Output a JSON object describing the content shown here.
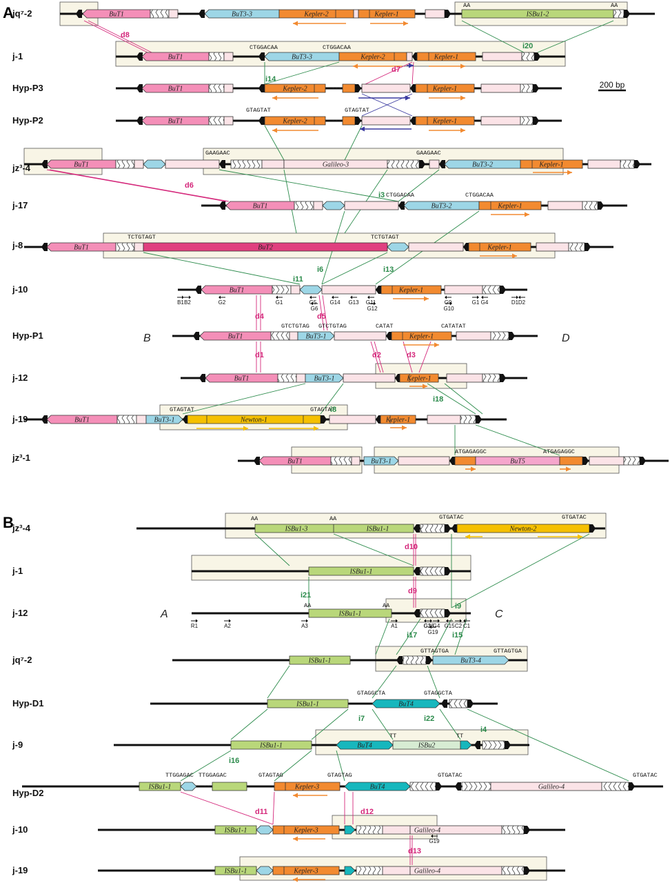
{
  "panels": [
    {
      "label": "A"
    },
    {
      "label": "B"
    }
  ],
  "scale_bar": "200 bp",
  "region_labels": [
    "B",
    "D",
    "A",
    "C"
  ],
  "colors": {
    "BuT1": "#f48fb8",
    "BuT2": "#e0407f",
    "BuT3": "#9dd6e6",
    "BuT4": "#17b7bd",
    "BuT5": "#f5a6cc",
    "Kepler": "#f28a30",
    "ISBu1": "#b9d77a",
    "ISBu2": "#d7ecd3",
    "Newton": "#f5c000",
    "Galileo": "#fbe3e7",
    "box": "#f8f5e6",
    "d_event": "#d4267a",
    "i_event": "#2a8a4a",
    "arrow_orange": "#f28a30",
    "arrow_blue": "#3a3aa0"
  },
  "rows": [
    {
      "id": "jq7-2",
      "label": "jq⁷-2"
    },
    {
      "id": "j-1",
      "label": "j-1"
    },
    {
      "id": "hyp-p3",
      "label": "Hyp-P3"
    },
    {
      "id": "hyp-p2",
      "label": "Hyp-P2"
    },
    {
      "id": "jz3-4",
      "label": "jz³-4"
    },
    {
      "id": "j-17",
      "label": "j-17"
    },
    {
      "id": "j-8",
      "label": "j-8"
    },
    {
      "id": "j-10",
      "label": "j-10"
    },
    {
      "id": "hyp-p1",
      "label": "Hyp-P1"
    },
    {
      "id": "j-12",
      "label": "j-12"
    },
    {
      "id": "j-19",
      "label": "j-19"
    },
    {
      "id": "jz3-1",
      "label": "jz³-1"
    },
    {
      "id": "b-jz3-4",
      "label": "jz³-4"
    },
    {
      "id": "b-j-1",
      "label": "j-1"
    },
    {
      "id": "b-j-12",
      "label": "j-12"
    },
    {
      "id": "b-jq7-2",
      "label": "jq⁷-2"
    },
    {
      "id": "hyp-d1",
      "label": "Hyp-D1"
    },
    {
      "id": "b-j-9",
      "label": "j-9"
    },
    {
      "id": "hyp-d2",
      "label": "Hyp-D2"
    },
    {
      "id": "b-j-10",
      "label": "j-10"
    },
    {
      "id": "b-j-19",
      "label": "j-19"
    }
  ],
  "element_labels": {
    "BuT1": "BuT1",
    "BuT2": "BuT2",
    "BuT3-1": "BuT3-1",
    "BuT3-2": "BuT3-2",
    "BuT3-3": "BuT3-3",
    "BuT3-4": "BuT3-4",
    "BuT4": "BuT4",
    "BuT5": "BuT5",
    "Kepler-1": "Kepler-1",
    "Kepler-2": "Kepler-2",
    "Kepler-3": "Kepler-3",
    "ISBu1-1": "ISBu1-1",
    "ISBu1-2": "ISBu1-2",
    "ISBu1-3": "ISBu1-3",
    "ISBu2": "ISBu2",
    "Newton-1": "Newton-1",
    "Newton-2": "Newton-2",
    "Galileo-3": "Galileo-3",
    "Galileo-4": "Galileo-4"
  },
  "seq_labels": {
    "AA": "AA",
    "CTGGACAA": "CTGGACAA",
    "GTAGTAT": "GTAGTAT",
    "GAAGAAC": "GAAGAAC",
    "TCTGTAGT": "TCTGTAGT",
    "GTCTGTAG": "GTCTGTAG",
    "CATAT": "CATAT",
    "CATATAT": "CATATAT",
    "ATGAGAGGC": "ATGAGAGGC",
    "GTGATAC": "GTGATAC",
    "GTTAGTGA": "GTTAGTGA",
    "GTAGGCTA": "GTAGGCTA",
    "TT": "TT",
    "TTGGAGAC": "TTGGAGAC",
    "GTAGTAG": "GTAGTAG"
  },
  "deletion_events": [
    "d1",
    "d2",
    "d3",
    "d4",
    "d5",
    "d6",
    "d7",
    "d8",
    "d9",
    "d10",
    "d11",
    "d12",
    "d13"
  ],
  "insertion_events": [
    "i3",
    "i4",
    "i6",
    "i7",
    "i8",
    "i9",
    "i11",
    "i13",
    "i14",
    "i15",
    "i16",
    "i17",
    "i18",
    "i20",
    "i21",
    "i22"
  ],
  "primers_a": [
    "B1",
    "B2",
    "G2",
    "G1",
    "G5",
    "G6",
    "G14",
    "G13",
    "G11",
    "G12",
    "G9",
    "G10",
    "G1",
    "G4",
    "D1",
    "D2"
  ],
  "primers_b": [
    "R1",
    "A2",
    "A3",
    "A1",
    "G3",
    "G16",
    "G4",
    "G15",
    "C2",
    "C1",
    "G19"
  ]
}
